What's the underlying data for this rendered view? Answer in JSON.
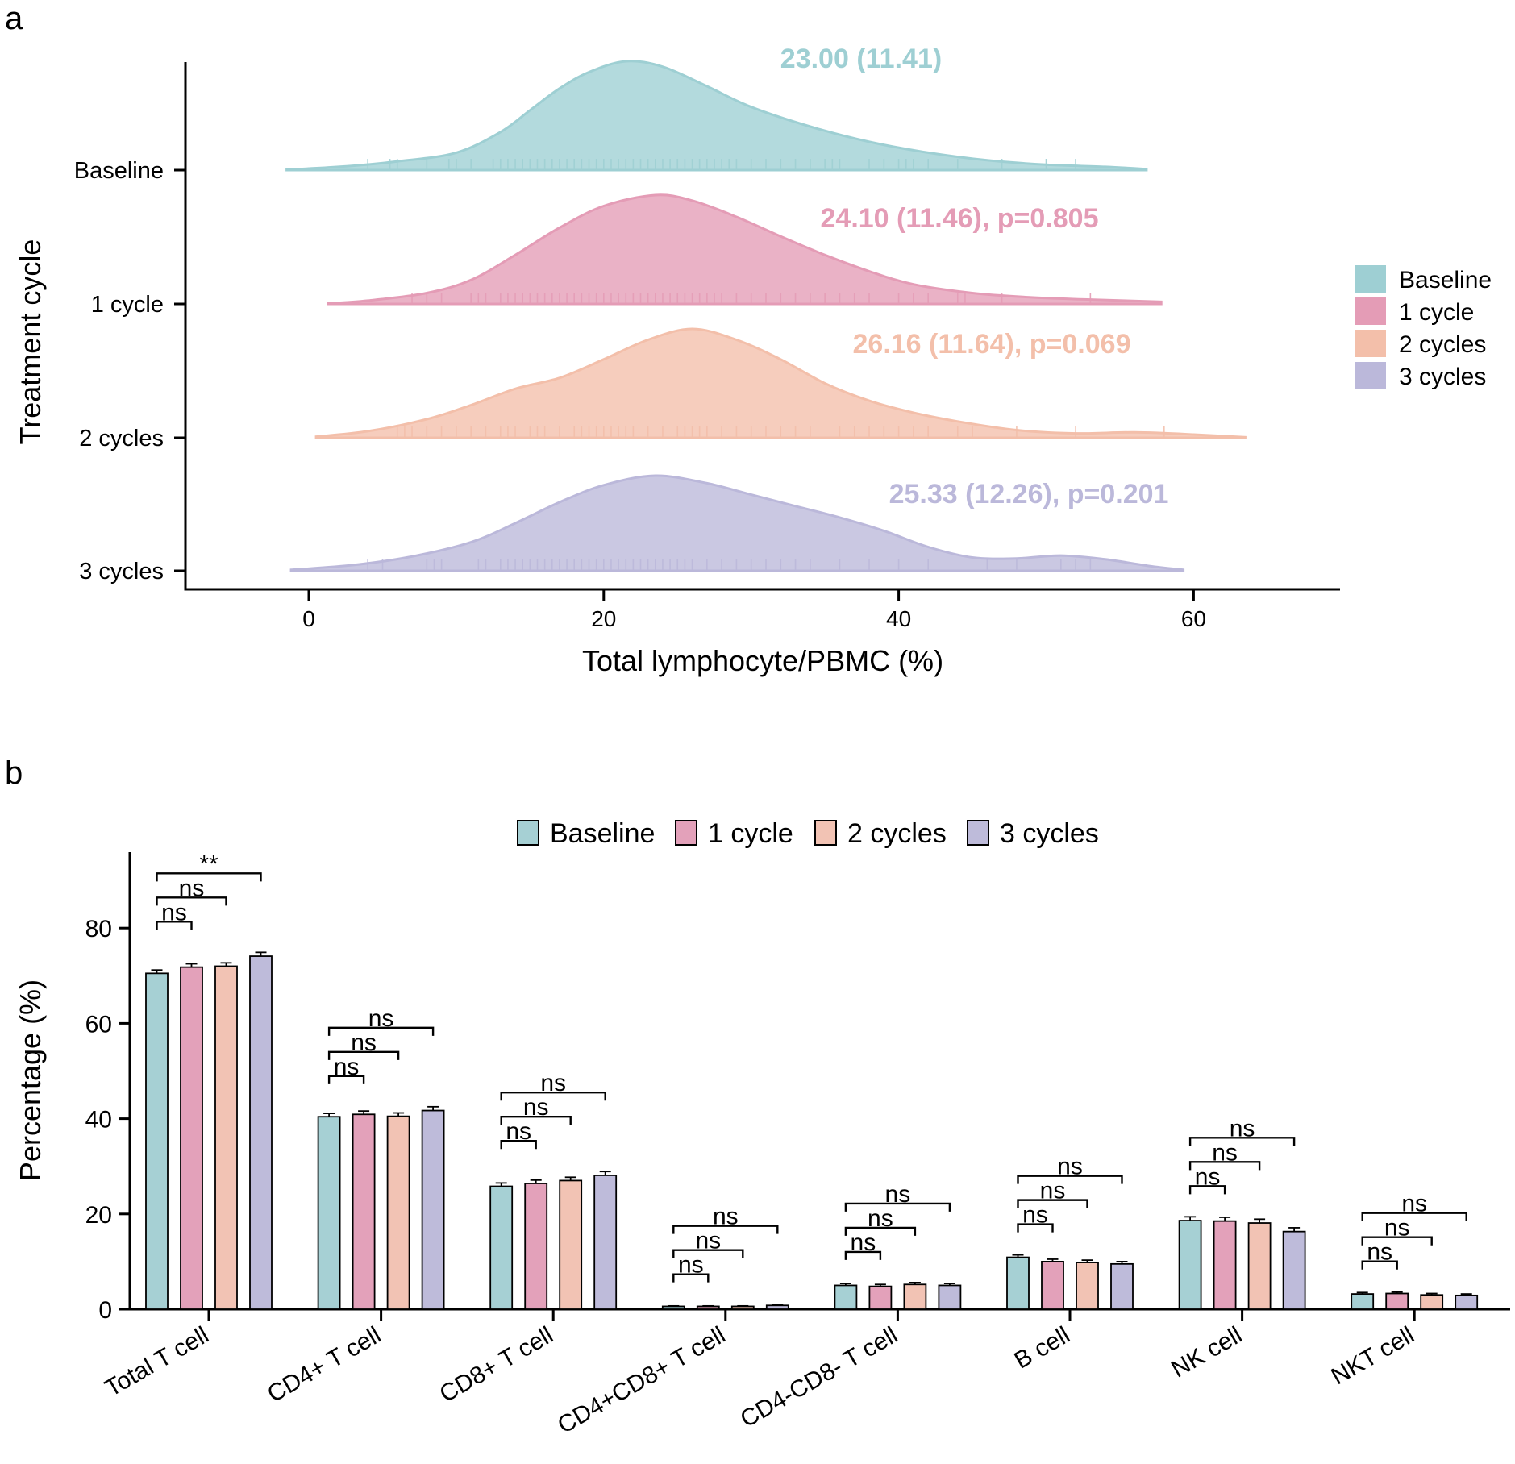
{
  "panel_a": {
    "letter": "a",
    "chart_data": {
      "type": "area",
      "subtype": "ridgeline density with rug",
      "xlabel": "Total lymphocyte/PBMC (%)",
      "ylabel": "Treatment cycle",
      "xlim": [
        -8.5,
        70
      ],
      "xticks": [
        0,
        20,
        40,
        60
      ],
      "categories": [
        "Baseline",
        "1 cycle",
        "2 cycles",
        "3 cycles"
      ],
      "series": [
        {
          "name": "Baseline",
          "color": "#9ECFD3",
          "annotation": "23.00 (11.41)",
          "range": [
            -1.5,
            56.8
          ],
          "density": [
            [
              -1.5,
              0.005
            ],
            [
              2,
              0.03
            ],
            [
              6,
              0.08
            ],
            [
              10,
              0.16
            ],
            [
              13,
              0.35
            ],
            [
              15,
              0.55
            ],
            [
              17,
              0.75
            ],
            [
              19,
              0.9
            ],
            [
              21.5,
              1.0
            ],
            [
              24,
              0.95
            ],
            [
              27,
              0.77
            ],
            [
              30,
              0.58
            ],
            [
              34,
              0.4
            ],
            [
              38,
              0.26
            ],
            [
              42,
              0.16
            ],
            [
              46,
              0.09
            ],
            [
              50,
              0.05
            ],
            [
              54,
              0.03
            ],
            [
              56.8,
              0.01
            ]
          ],
          "rug": [
            4,
            5.5,
            6,
            8,
            9.5,
            10,
            11,
            12.5,
            13,
            13.5,
            14,
            14.5,
            15,
            15.5,
            16,
            16.5,
            17,
            17.5,
            18,
            18.5,
            19,
            19.5,
            20,
            20.5,
            21,
            21.5,
            22,
            22.5,
            23,
            23.5,
            24,
            24.5,
            25,
            25.5,
            26,
            26.5,
            27,
            27.5,
            28,
            28.5,
            29,
            30,
            31,
            32,
            33,
            34,
            35,
            35.5,
            36,
            38,
            39,
            40,
            40.5,
            41,
            42,
            44,
            47,
            50,
            52
          ]
        },
        {
          "name": "1 cycle",
          "color": "#E49CB6",
          "annotation": "24.10 (11.46), p=0.805",
          "range": [
            1.3,
            57.8
          ],
          "density": [
            [
              1.3,
              0.005
            ],
            [
              4,
              0.03
            ],
            [
              8,
              0.1
            ],
            [
              11,
              0.22
            ],
            [
              14,
              0.45
            ],
            [
              17,
              0.7
            ],
            [
              20,
              0.9
            ],
            [
              23.5,
              1.0
            ],
            [
              26,
              0.95
            ],
            [
              29,
              0.8
            ],
            [
              32,
              0.62
            ],
            [
              35,
              0.45
            ],
            [
              38,
              0.3
            ],
            [
              41,
              0.18
            ],
            [
              45,
              0.1
            ],
            [
              49,
              0.06
            ],
            [
              53,
              0.04
            ],
            [
              57.8,
              0.02
            ]
          ],
          "rug": [
            7,
            8,
            9,
            11,
            11.5,
            12,
            13,
            13.5,
            14,
            14.5,
            15,
            15.5,
            16,
            16.5,
            17,
            17.5,
            18,
            18.5,
            19,
            19.5,
            20,
            20.5,
            21,
            21.5,
            22,
            22.5,
            23,
            23.5,
            24,
            24.5,
            25,
            25.5,
            26,
            26.5,
            27,
            27.5,
            28,
            29,
            30,
            31,
            32,
            33,
            34,
            35,
            36,
            37,
            38,
            40,
            41,
            42,
            44,
            44.5,
            47,
            53
          ]
        },
        {
          "name": "2 cycles",
          "color": "#F3BFAA",
          "annotation": "26.16 (11.64), p=0.069",
          "range": [
            0.5,
            63.5
          ],
          "density": [
            [
              0.5,
              0.01
            ],
            [
              4,
              0.06
            ],
            [
              8,
              0.17
            ],
            [
              11,
              0.3
            ],
            [
              14,
              0.45
            ],
            [
              17,
              0.55
            ],
            [
              20,
              0.72
            ],
            [
              23,
              0.9
            ],
            [
              26,
              1.0
            ],
            [
              29,
              0.9
            ],
            [
              32,
              0.72
            ],
            [
              35,
              0.5
            ],
            [
              38,
              0.34
            ],
            [
              41,
              0.23
            ],
            [
              44,
              0.15
            ],
            [
              48,
              0.07
            ],
            [
              52,
              0.04
            ],
            [
              56,
              0.05
            ],
            [
              60,
              0.03
            ],
            [
              63.5,
              0.005
            ]
          ],
          "rug": [
            6,
            6.5,
            7,
            8,
            9,
            10,
            11,
            12,
            13,
            13.5,
            14,
            15,
            15.5,
            16,
            17,
            18,
            18.5,
            19,
            19.5,
            20,
            20.5,
            21,
            21.5,
            22,
            23,
            24,
            25,
            25.5,
            26,
            26.5,
            27,
            28,
            29,
            30,
            31,
            32,
            33,
            34,
            36,
            37,
            38,
            39,
            40,
            41,
            42,
            44,
            45,
            48,
            52,
            58
          ]
        },
        {
          "name": "3 cycles",
          "color": "#BBB8DA",
          "annotation": "25.33 (12.26), p=0.201",
          "range": [
            -1.2,
            59.3
          ],
          "density": [
            [
              -1.2,
              0.01
            ],
            [
              3,
              0.06
            ],
            [
              7,
              0.15
            ],
            [
              11,
              0.3
            ],
            [
              14,
              0.5
            ],
            [
              17,
              0.72
            ],
            [
              20,
              0.9
            ],
            [
              23.5,
              1.0
            ],
            [
              27,
              0.92
            ],
            [
              30,
              0.8
            ],
            [
              33,
              0.68
            ],
            [
              36,
              0.56
            ],
            [
              39,
              0.42
            ],
            [
              42,
              0.25
            ],
            [
              45,
              0.14
            ],
            [
              48,
              0.13
            ],
            [
              51,
              0.16
            ],
            [
              54,
              0.12
            ],
            [
              57,
              0.05
            ],
            [
              59.3,
              0.01
            ]
          ],
          "rug": [
            4,
            5,
            8,
            8.5,
            9,
            11.5,
            12,
            13,
            13.5,
            14,
            14.5,
            15,
            15.5,
            16,
            16.5,
            17,
            17.5,
            18,
            18.5,
            19,
            19.5,
            20,
            20.5,
            21,
            21.5,
            22,
            22.5,
            23,
            23.5,
            24,
            24.5,
            25,
            25.5,
            26,
            27,
            28,
            29,
            30,
            31,
            32,
            33,
            34,
            36,
            38,
            40,
            42,
            46,
            48,
            51,
            52,
            53
          ]
        }
      ]
    }
  },
  "panel_b": {
    "letter": "b",
    "chart_data": {
      "type": "bar",
      "ylabel": "Percentage (%)",
      "ylim": [
        0,
        95
      ],
      "yticks": [
        0,
        20,
        40,
        60,
        80
      ],
      "categories": [
        "Total T cell",
        "CD4+ T cell",
        "CD8+ T cell",
        "CD4+CD8+ T cell",
        "CD4-CD8- T cell",
        "B cell",
        "NK cell",
        "NKT cell"
      ],
      "series": [
        {
          "name": "Baseline",
          "color": "#A6D0D4",
          "values": [
            70.5,
            40.4,
            25.8,
            0.6,
            5.0,
            10.9,
            18.6,
            3.2
          ],
          "errors": [
            0.7,
            0.7,
            0.7,
            0.1,
            0.4,
            0.5,
            0.8,
            0.3
          ]
        },
        {
          "name": "1 cycle",
          "color": "#E3A1BA",
          "values": [
            71.8,
            40.9,
            26.4,
            0.6,
            4.8,
            10.0,
            18.5,
            3.3
          ],
          "errors": [
            0.7,
            0.7,
            0.7,
            0.1,
            0.4,
            0.5,
            0.8,
            0.3
          ]
        },
        {
          "name": "2 cycles",
          "color": "#F2C3B4",
          "values": [
            72.0,
            40.5,
            27.0,
            0.6,
            5.2,
            9.8,
            18.1,
            3.0
          ],
          "errors": [
            0.7,
            0.7,
            0.7,
            0.1,
            0.4,
            0.5,
            0.8,
            0.3
          ]
        },
        {
          "name": "3 cycles",
          "color": "#BEBBDA",
          "values": [
            74.1,
            41.7,
            28.1,
            0.8,
            5.0,
            9.5,
            16.3,
            2.9
          ],
          "errors": [
            0.8,
            0.8,
            0.8,
            0.1,
            0.4,
            0.5,
            0.8,
            0.3
          ]
        }
      ],
      "significance": [
        {
          "category": "Total T cell",
          "labels": [
            "ns",
            "ns",
            "**"
          ]
        },
        {
          "category": "CD4+ T cell",
          "labels": [
            "ns",
            "ns",
            "ns"
          ]
        },
        {
          "category": "CD8+ T cell",
          "labels": [
            "ns",
            "ns",
            "ns"
          ]
        },
        {
          "category": "CD4+CD8+ T cell",
          "labels": [
            "ns",
            "ns",
            "ns"
          ]
        },
        {
          "category": "CD4-CD8- T cell",
          "labels": [
            "ns",
            "ns",
            "ns"
          ]
        },
        {
          "category": "B cell",
          "labels": [
            "ns",
            "ns",
            "ns"
          ]
        },
        {
          "category": "NK cell",
          "labels": [
            "ns",
            "ns",
            "ns"
          ]
        },
        {
          "category": "NKT cell",
          "labels": [
            "ns",
            "ns",
            "ns"
          ]
        }
      ],
      "legend": {
        "placement": "top",
        "items": [
          "Baseline",
          "1 cycle",
          "2 cycles",
          "3 cycles"
        ]
      }
    }
  }
}
